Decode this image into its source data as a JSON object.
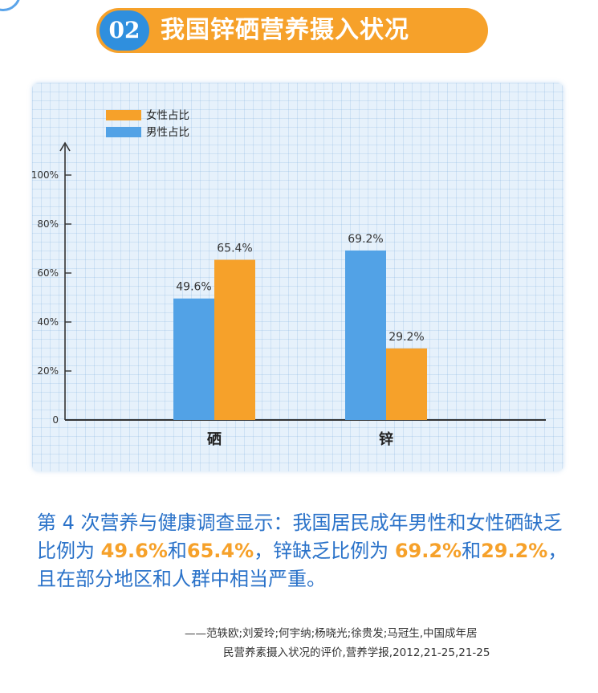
{
  "header": {
    "number": "02",
    "title": "我国锌硒营养摄入状况"
  },
  "colors": {
    "female": "#f6a12a",
    "male": "#52a2e6",
    "accent_blue": "#2a72c9",
    "accent_orange": "#f6a12a"
  },
  "chart_data": {
    "type": "bar",
    "categories": [
      "硒",
      "锌"
    ],
    "series": [
      {
        "name": "男性占比",
        "values": [
          49.6,
          69.2
        ],
        "labels": [
          "49.6%",
          "69.2%"
        ],
        "color": "#52a2e6"
      },
      {
        "name": "女性占比",
        "values": [
          65.4,
          29.2
        ],
        "labels": [
          "65.4%",
          "29.2%"
        ],
        "color": "#f6a12a"
      }
    ],
    "legend_order": [
      "女性占比",
      "男性占比"
    ],
    "legend_placement": "top-left",
    "yticks": [
      0,
      20,
      40,
      60,
      80,
      100
    ],
    "ytick_labels": [
      "0",
      "20%",
      "40%",
      "60%",
      "80%",
      "100%"
    ],
    "ylim": [
      0,
      100
    ],
    "grid": true
  },
  "description": {
    "segments": [
      {
        "text": "第 4 次营养与健康调查显示：我国居民成年男性和女性硒缺乏比例为 ",
        "highlight": false
      },
      {
        "text": "49.6%",
        "highlight": true
      },
      {
        "text": "和",
        "highlight": false
      },
      {
        "text": "65.4%",
        "highlight": true
      },
      {
        "text": "，锌缺乏比例为 ",
        "highlight": false
      },
      {
        "text": "69.2%",
        "highlight": true
      },
      {
        "text": "和",
        "highlight": false
      },
      {
        "text": "29.2%",
        "highlight": true
      },
      {
        "text": "，且在部分地区和人群中相当严重。",
        "highlight": false
      }
    ]
  },
  "citation": {
    "line1": "——范轶欧;刘爱玲;何宇纳;杨晓光;徐贵发;马冠生,中国成年居",
    "line2": "民营养素摄入状况的评价,营养学报,2012,21-25,21-25"
  }
}
